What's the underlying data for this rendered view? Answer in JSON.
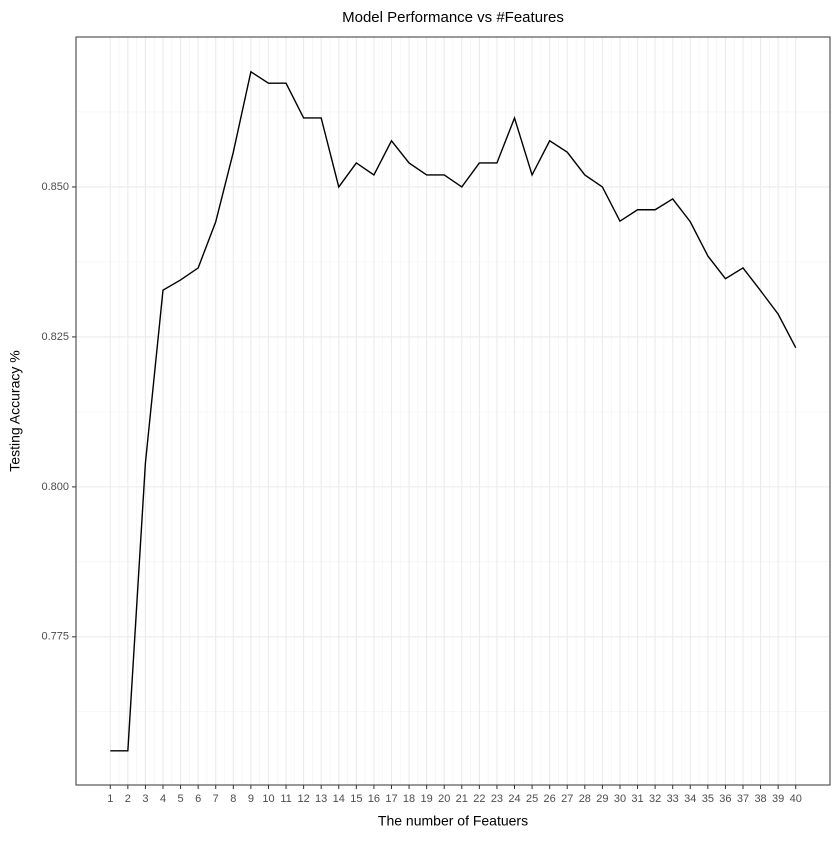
{
  "chart_data": {
    "type": "line",
    "title": "Model Performance vs #Features",
    "x_label": "The number of Featuers",
    "y_label": "Testing Accuracy %",
    "x": [
      1,
      2,
      3,
      4,
      5,
      6,
      7,
      8,
      9,
      10,
      11,
      12,
      13,
      14,
      15,
      16,
      17,
      18,
      19,
      20,
      21,
      22,
      23,
      24,
      25,
      26,
      27,
      28,
      29,
      30,
      31,
      32,
      33,
      34,
      35,
      36,
      37,
      38,
      39,
      40
    ],
    "series": [
      {
        "name": "accuracy",
        "color": "#000000",
        "values": [
          0.756,
          0.756,
          0.804,
          0.8328,
          0.8345,
          0.8365,
          0.8442,
          0.8558,
          0.8692,
          0.8673,
          0.8673,
          0.8615,
          0.8615,
          0.85,
          0.854,
          0.852,
          0.8577,
          0.854,
          0.852,
          0.852,
          0.85,
          0.854,
          0.854,
          0.8615,
          0.852,
          0.8577,
          0.8558,
          0.852,
          0.85,
          0.8443,
          0.8462,
          0.8462,
          0.848,
          0.8442,
          0.8385,
          0.8347,
          0.8365,
          0.8327,
          0.8288,
          0.8232
        ]
      }
    ],
    "xlim": [
      -0.95,
      41.95
    ],
    "ylim": [
      0.7503,
      0.875
    ],
    "xticks": [
      1,
      2,
      3,
      4,
      5,
      6,
      7,
      8,
      9,
      10,
      11,
      12,
      13,
      14,
      15,
      16,
      17,
      18,
      19,
      20,
      21,
      22,
      23,
      24,
      25,
      26,
      27,
      28,
      29,
      30,
      31,
      32,
      33,
      34,
      35,
      36,
      37,
      38,
      39,
      40
    ],
    "yticks": [
      0.775,
      {
        "value": 0.8,
        "label": "0.800"
      },
      0.825,
      {
        "value": 0.85,
        "label": "0.850"
      }
    ],
    "grid": true,
    "minor_grid": true
  }
}
